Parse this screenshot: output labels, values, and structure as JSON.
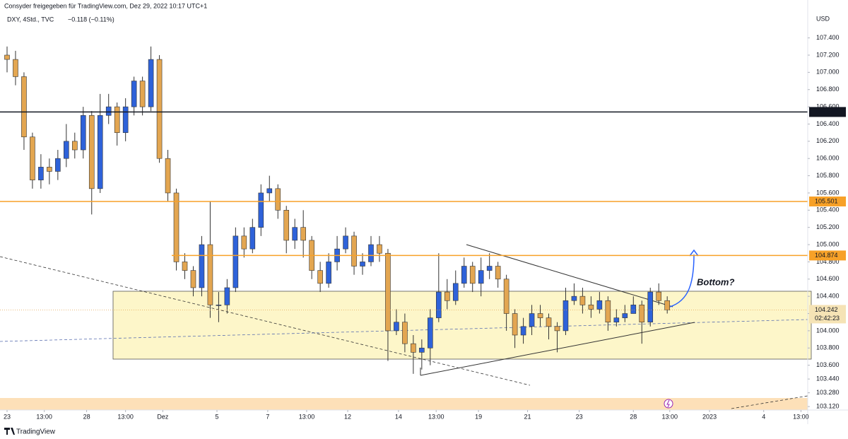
{
  "header": {
    "title": "Consyder freigegeben für TradingView.com, Dez 29, 2022 10:17 UTC+1",
    "symbol": "DXY, 4Std., TVC",
    "change": "−0.118 (−0.11%)"
  },
  "chart_data": {
    "type": "candlestick",
    "currency": "USD",
    "ylim": [
      103.08,
      107.84
    ],
    "yticks": [
      {
        "value": 107.4,
        "label": "107.400"
      },
      {
        "value": 107.2,
        "label": "107.200"
      },
      {
        "value": 107.0,
        "label": "107.000"
      },
      {
        "value": 106.8,
        "label": "106.800"
      },
      {
        "value": 106.6,
        "label": "106.600"
      },
      {
        "value": 106.4,
        "label": "106.400"
      },
      {
        "value": 106.2,
        "label": "106.200"
      },
      {
        "value": 106.0,
        "label": "106.000"
      },
      {
        "value": 105.8,
        "label": "105.800"
      },
      {
        "value": 105.6,
        "label": "105.600"
      },
      {
        "value": 105.4,
        "label": "105.400"
      },
      {
        "value": 105.2,
        "label": "105.200"
      },
      {
        "value": 105.0,
        "label": "105.000"
      },
      {
        "value": 104.8,
        "label": "104.800"
      },
      {
        "value": 104.6,
        "label": "104.600"
      },
      {
        "value": 104.4,
        "label": "104.400"
      },
      {
        "value": 104.2,
        "label": "104.200"
      },
      {
        "value": 104.0,
        "label": "104.000"
      },
      {
        "value": 103.8,
        "label": "103.800"
      },
      {
        "value": 103.6,
        "label": "103.600"
      },
      {
        "value": 103.44,
        "label": "103.440"
      },
      {
        "value": 103.28,
        "label": "103.280"
      },
      {
        "value": 103.12,
        "label": "103.120"
      }
    ],
    "xlim": [
      -0.5,
      94.6
    ],
    "xticks": [
      {
        "value": 0,
        "label": "23"
      },
      {
        "value": 4.4,
        "label": "13:00"
      },
      {
        "value": 9.4,
        "label": "28"
      },
      {
        "value": 14,
        "label": "13:00"
      },
      {
        "value": 18.4,
        "label": "Dez"
      },
      {
        "value": 24.8,
        "label": "5"
      },
      {
        "value": 30.8,
        "label": "7"
      },
      {
        "value": 35.4,
        "label": "13:00"
      },
      {
        "value": 40.25,
        "label": "12"
      },
      {
        "value": 46.25,
        "label": "14"
      },
      {
        "value": 50.7,
        "label": "13:00"
      },
      {
        "value": 55.7,
        "label": "19"
      },
      {
        "value": 61.5,
        "label": "21"
      },
      {
        "value": 67.6,
        "label": "23"
      },
      {
        "value": 74,
        "label": "28"
      },
      {
        "value": 78.3,
        "label": "13:00"
      },
      {
        "value": 83,
        "label": "2023"
      },
      {
        "value": 89.4,
        "label": "4"
      },
      {
        "value": 93.8,
        "label": "13:00"
      }
    ],
    "open": [
      107.2,
      107.15,
      106.95,
      106.25,
      105.75,
      105.9,
      105.85,
      106.0,
      106.2,
      106.1,
      106.5,
      105.65,
      106.5,
      106.6,
      106.3,
      106.6,
      106.9,
      106.6,
      107.15,
      106.0,
      105.6,
      104.8,
      104.7,
      104.5,
      105.0,
      104.3,
      104.3,
      104.5,
      105.1,
      104.95,
      105.2,
      105.6,
      105.65,
      105.4,
      105.05,
      105.2,
      105.05,
      104.7,
      104.55,
      104.8,
      104.95,
      105.1,
      104.75,
      104.8,
      105.0,
      104.9,
      104.0,
      104.1,
      103.85,
      103.75,
      103.8,
      104.15,
      104.45,
      104.35,
      104.55,
      104.75,
      104.55,
      104.7,
      104.75,
      104.6,
      104.2,
      103.95,
      104.05,
      104.2,
      104.15,
      104.05,
      104.0,
      104.35,
      104.4,
      104.3,
      104.25,
      104.35,
      104.1,
      104.15,
      104.2,
      104.3,
      104.1,
      104.45,
      104.35
    ],
    "high": [
      107.3,
      107.25,
      107.0,
      106.3,
      106.05,
      106.0,
      106.1,
      106.4,
      106.3,
      106.6,
      106.55,
      106.75,
      106.75,
      106.65,
      106.7,
      106.95,
      106.95,
      107.3,
      107.2,
      106.1,
      105.65,
      104.9,
      104.75,
      105.1,
      105.5,
      104.45,
      104.6,
      105.2,
      105.2,
      105.3,
      105.7,
      105.8,
      105.7,
      105.45,
      105.3,
      105.4,
      105.1,
      104.8,
      104.9,
      105.1,
      105.2,
      105.15,
      104.9,
      105.1,
      105.1,
      104.95,
      104.25,
      104.2,
      103.95,
      103.9,
      104.25,
      104.9,
      104.6,
      104.7,
      104.85,
      104.8,
      104.85,
      104.9,
      104.8,
      104.65,
      104.25,
      104.15,
      104.3,
      104.3,
      104.2,
      104.1,
      104.5,
      104.55,
      104.5,
      104.4,
      104.45,
      104.4,
      104.25,
      104.3,
      104.4,
      104.35,
      104.5,
      104.55,
      104.4
    ],
    "low": [
      107.0,
      106.85,
      106.1,
      105.65,
      105.65,
      105.7,
      105.75,
      105.9,
      106.0,
      106.0,
      105.35,
      105.6,
      106.4,
      106.15,
      106.2,
      106.5,
      106.5,
      106.55,
      105.95,
      105.5,
      104.7,
      104.6,
      104.4,
      104.4,
      104.15,
      104.1,
      104.2,
      104.45,
      104.85,
      104.9,
      105.1,
      105.5,
      105.3,
      104.9,
      104.95,
      104.85,
      104.6,
      104.45,
      104.5,
      104.7,
      104.9,
      104.65,
      104.65,
      104.75,
      104.8,
      103.65,
      103.95,
      103.75,
      103.5,
      103.55,
      103.6,
      104.1,
      104.25,
      104.3,
      104.5,
      104.45,
      104.4,
      104.6,
      104.5,
      104.0,
      103.8,
      103.85,
      103.95,
      104.05,
      103.9,
      103.75,
      103.95,
      104.3,
      104.2,
      104.15,
      104.2,
      104.0,
      104.05,
      104.1,
      104.2,
      103.85,
      104.05,
      104.3,
      104.2
    ],
    "close": [
      107.15,
      106.95,
      106.25,
      105.75,
      105.9,
      105.85,
      106.0,
      106.2,
      106.1,
      106.5,
      105.65,
      106.5,
      106.6,
      106.3,
      106.6,
      106.9,
      106.6,
      107.15,
      106.0,
      105.6,
      104.8,
      104.7,
      104.5,
      105.0,
      104.3,
      104.3,
      104.5,
      105.1,
      104.95,
      105.2,
      105.6,
      105.65,
      105.4,
      105.05,
      105.2,
      105.05,
      104.7,
      104.55,
      104.8,
      104.95,
      105.1,
      104.75,
      104.8,
      105.0,
      104.9,
      104.0,
      104.1,
      103.85,
      103.75,
      103.8,
      104.15,
      104.45,
      104.35,
      104.55,
      104.75,
      104.55,
      104.7,
      104.75,
      104.6,
      104.2,
      103.95,
      104.05,
      104.2,
      104.15,
      104.05,
      104.0,
      104.35,
      104.4,
      104.3,
      104.25,
      104.35,
      104.1,
      104.15,
      104.2,
      104.3,
      104.1,
      104.45,
      104.35,
      104.242
    ],
    "up_color": "#2e62d9",
    "down_color": "#e3a651",
    "levels": [
      {
        "value": 106.54,
        "label": "106.540",
        "color": "#131722"
      },
      {
        "value": 105.501,
        "label": "105.501",
        "color": "#f7a128"
      },
      {
        "value": 104.874,
        "label": "104.874",
        "color": "#f7a128"
      }
    ],
    "last_price": {
      "value": 104.242,
      "label": "104.242"
    },
    "countdown": "02:42:23",
    "annotation": "Bottom?"
  },
  "footer": {
    "brand": "TradingView"
  }
}
